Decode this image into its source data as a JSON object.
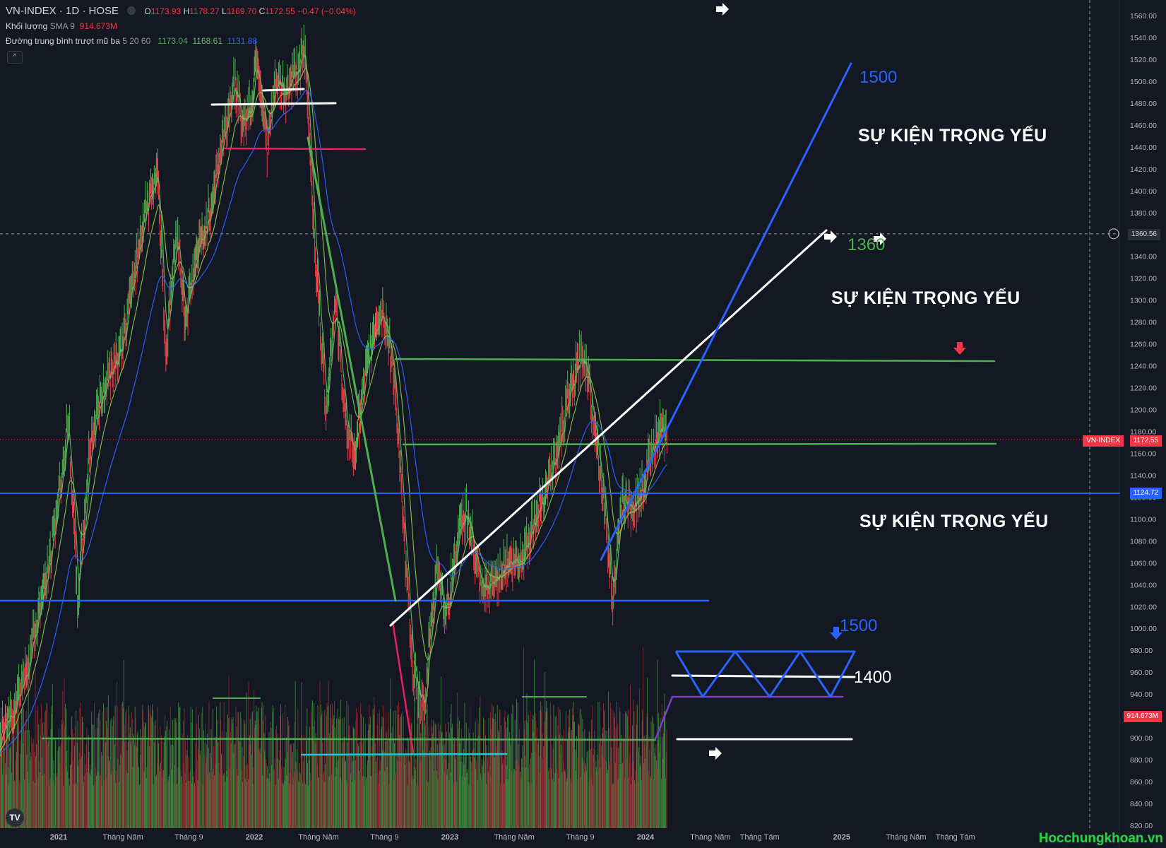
{
  "header": {
    "symbol": "VN-INDEX · 1D · HOSE",
    "o_label": "O",
    "o_value": "1173.93",
    "h_label": "H",
    "h_value": "1178.27",
    "l_label": "L",
    "l_value": "1169.70",
    "c_label": "C",
    "c_value": "1172.55",
    "change": "−0.47 (−0.04%)",
    "volume_label": "Khối lượng",
    "volume_sma": "SMA 9",
    "volume_value": "914.673M",
    "ema_label": "Đường trung bình trượt mũ ba",
    "ema_params": "5 20 60",
    "ema1": "1173.04",
    "ema2": "1168.61",
    "ema3": "1131.88",
    "collapse_icon": "^"
  },
  "annotations": {
    "event1": "SỰ KIỆN TRỌNG YẾU",
    "event2": "SỰ KIỆN TRỌNG YẾU",
    "event3": "SỰ KIỆN TRỌNG YẾU",
    "target_1500_top": "1500",
    "target_1360": "1360",
    "target_1500_bottom": "1500",
    "target_1400": "1400"
  },
  "price_tags": {
    "crosshair": "1360.56",
    "symbol_tag": "VN-INDEX",
    "last_price": "1172.55",
    "hline": "1124.72",
    "volume": "914.673M"
  },
  "watermark": "Hocchungkhoan.vn",
  "logo": "TV",
  "colors": {
    "background": "#141823",
    "up": "#4caf50",
    "down": "#f23645",
    "blue_line": "#2962ff",
    "green_line": "#4caf50",
    "white_line": "#ffffff"
  },
  "chart_data": {
    "type": "line",
    "title": "VN-INDEX · 1D · HOSE",
    "y_axis": {
      "ticks": [
        820,
        840,
        860,
        880,
        900,
        920,
        940,
        960,
        980,
        1000,
        1020,
        1040,
        1060,
        1080,
        1100,
        1120,
        1140,
        1160,
        1180,
        1200,
        1220,
        1240,
        1260,
        1280,
        1300,
        1320,
        1340,
        1360,
        1380,
        1400,
        1420,
        1440,
        1460,
        1480,
        1500,
        1520,
        1540,
        1560
      ],
      "range": [
        816,
        1566
      ]
    },
    "x_axis": {
      "ticks": [
        "2021",
        "Tháng Năm",
        "Tháng 9",
        "2022",
        "Tháng Năm",
        "Tháng 9",
        "2023",
        "Tháng Năm",
        "Tháng 9",
        "2024",
        "Tháng Năm",
        "Tháng Tám",
        "2025",
        "Tháng Năm",
        "Tháng Tám"
      ],
      "tick_dates": [
        "2021-01-01",
        "2021-05-01",
        "2021-09-01",
        "2022-01-01",
        "2022-05-01",
        "2022-09-01",
        "2023-01-01",
        "2023-05-01",
        "2023-09-01",
        "2024-01-01",
        "2024-05-01",
        "2024-08-01",
        "2025-01-01",
        "2025-05-01",
        "2025-08-01"
      ]
    },
    "series": [
      {
        "name": "VN-INDEX",
        "points": [
          [
            "2020-09-01",
            880
          ],
          [
            "2020-11-01",
            960
          ],
          [
            "2020-12-15",
            1060
          ],
          [
            "2021-01-20",
            1190
          ],
          [
            "2021-02-05",
            1020
          ],
          [
            "2021-03-01",
            1170
          ],
          [
            "2021-04-01",
            1230
          ],
          [
            "2021-05-01",
            1260
          ],
          [
            "2021-06-10",
            1380
          ],
          [
            "2021-07-05",
            1420
          ],
          [
            "2021-07-20",
            1250
          ],
          [
            "2021-08-10",
            1370
          ],
          [
            "2021-08-25",
            1280
          ],
          [
            "2021-09-15",
            1340
          ],
          [
            "2021-10-10",
            1380
          ],
          [
            "2021-11-01",
            1440
          ],
          [
            "2021-11-25",
            1500
          ],
          [
            "2021-12-10",
            1460
          ],
          [
            "2021-12-28",
            1480
          ],
          [
            "2022-01-05",
            1530
          ],
          [
            "2022-01-25",
            1440
          ],
          [
            "2022-02-10",
            1500
          ],
          [
            "2022-03-01",
            1490
          ],
          [
            "2022-03-20",
            1510
          ],
          [
            "2022-04-05",
            1525
          ],
          [
            "2022-04-15",
            1440
          ],
          [
            "2022-04-25",
            1340
          ],
          [
            "2022-05-15",
            1200
          ],
          [
            "2022-06-01",
            1300
          ],
          [
            "2022-06-20",
            1190
          ],
          [
            "2022-07-05",
            1160
          ],
          [
            "2022-07-25",
            1220
          ],
          [
            "2022-08-15",
            1280
          ],
          [
            "2022-08-30",
            1290
          ],
          [
            "2022-09-20",
            1230
          ],
          [
            "2022-10-10",
            1060
          ],
          [
            "2022-10-25",
            960
          ],
          [
            "2022-11-15",
            920
          ],
          [
            "2022-11-25",
            1000
          ],
          [
            "2022-12-10",
            1060
          ],
          [
            "2022-12-25",
            1010
          ],
          [
            "2023-01-15",
            1080
          ],
          [
            "2023-02-01",
            1110
          ],
          [
            "2023-03-01",
            1030
          ],
          [
            "2023-03-20",
            1040
          ],
          [
            "2023-04-15",
            1060
          ],
          [
            "2023-05-10",
            1060
          ],
          [
            "2023-06-01",
            1090
          ],
          [
            "2023-06-30",
            1130
          ],
          [
            "2023-07-20",
            1160
          ],
          [
            "2023-08-10",
            1210
          ],
          [
            "2023-08-28",
            1240
          ],
          [
            "2023-09-10",
            1250
          ],
          [
            "2023-09-30",
            1180
          ],
          [
            "2023-10-15",
            1120
          ],
          [
            "2023-11-01",
            1030
          ],
          [
            "2023-11-20",
            1120
          ],
          [
            "2023-12-10",
            1110
          ],
          [
            "2023-12-28",
            1130
          ],
          [
            "2024-01-15",
            1170
          ],
          [
            "2024-02-01",
            1180
          ],
          [
            "2024-02-10",
            1172.55
          ]
        ]
      },
      {
        "name": "Khối lượng",
        "values_description": "daily volume bars at bottom, SMA 9 = 914.673M"
      }
    ],
    "drawings": {
      "horizontal_lines": [
        1124.72,
        1025,
        1245,
        1170
      ],
      "targets": [
        1500,
        1360,
        1400
      ]
    },
    "legend": "top-left",
    "grid": false
  }
}
